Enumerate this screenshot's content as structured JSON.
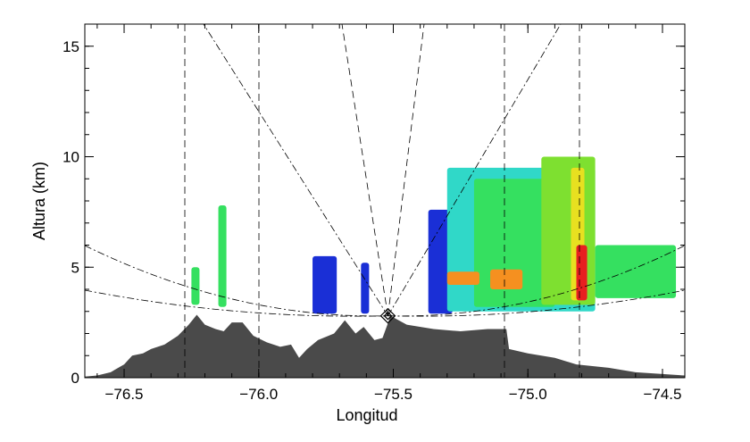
{
  "chart_data": {
    "type": "area",
    "xlabel": "Longitud",
    "ylabel": "Altura (km)",
    "xlim": [
      -76.646,
      -74.417
    ],
    "ylim": [
      0,
      16
    ],
    "xticks": [
      {
        "value": -76.5,
        "label": "−76.5"
      },
      {
        "value": -76.0,
        "label": "−76.0"
      },
      {
        "value": -75.5,
        "label": "−75.5"
      },
      {
        "value": -75.0,
        "label": "−75.0"
      },
      {
        "value": -74.5,
        "label": "−74.5"
      }
    ],
    "yticks": [
      {
        "value": 0,
        "label": "0"
      },
      {
        "value": 5,
        "label": "5"
      },
      {
        "value": 10,
        "label": "10"
      },
      {
        "value": 15,
        "label": "15"
      }
    ],
    "grid": false,
    "terrain_color": "#4a4a4a",
    "terrain": [
      [
        -76.646,
        0.05
      ],
      [
        -76.6,
        0.1
      ],
      [
        -76.55,
        0.25
      ],
      [
        -76.5,
        0.6
      ],
      [
        -76.47,
        1.0
      ],
      [
        -76.43,
        1.1
      ],
      [
        -76.4,
        1.3
      ],
      [
        -76.35,
        1.5
      ],
      [
        -76.3,
        1.9
      ],
      [
        -76.26,
        2.4
      ],
      [
        -76.23,
        2.85
      ],
      [
        -76.2,
        2.4
      ],
      [
        -76.16,
        2.2
      ],
      [
        -76.13,
        2.1
      ],
      [
        -76.1,
        2.5
      ],
      [
        -76.06,
        2.5
      ],
      [
        -76.02,
        1.9
      ],
      [
        -75.97,
        1.6
      ],
      [
        -75.92,
        1.4
      ],
      [
        -75.88,
        1.5
      ],
      [
        -75.85,
        0.9
      ],
      [
        -75.82,
        1.3
      ],
      [
        -75.78,
        1.7
      ],
      [
        -75.72,
        2.0
      ],
      [
        -75.68,
        2.6
      ],
      [
        -75.64,
        2.0
      ],
      [
        -75.61,
        2.3
      ],
      [
        -75.57,
        1.7
      ],
      [
        -75.54,
        1.8
      ],
      [
        -75.51,
        2.8
      ],
      [
        -75.45,
        2.4
      ],
      [
        -75.35,
        2.2
      ],
      [
        -75.25,
        2.1
      ],
      [
        -75.15,
        2.2
      ],
      [
        -75.08,
        2.2
      ],
      [
        -75.07,
        1.3
      ],
      [
        -75.0,
        1.1
      ],
      [
        -74.9,
        0.9
      ],
      [
        -74.82,
        0.6
      ],
      [
        -74.7,
        0.45
      ],
      [
        -74.6,
        0.25
      ],
      [
        -74.417,
        0.1
      ]
    ],
    "radar_site": {
      "lon": -75.52,
      "alt": 2.8
    },
    "echo_colors": [
      "#1a2fd6",
      "#2a8fd8",
      "#30d8c8",
      "#35e060",
      "#7ee030",
      "#e8e020",
      "#f59020",
      "#e82020"
    ],
    "echoes": [
      {
        "lon": [
          -76.25,
          -76.22
        ],
        "alt": [
          3.3,
          5.0
        ],
        "level": 3
      },
      {
        "lon": [
          -76.15,
          -76.12
        ],
        "alt": [
          3.2,
          7.8
        ],
        "level": 3
      },
      {
        "lon": [
          -75.8,
          -75.71
        ],
        "alt": [
          2.9,
          5.5
        ],
        "level": 0
      },
      {
        "lon": [
          -75.62,
          -75.59
        ],
        "alt": [
          2.9,
          5.2
        ],
        "level": 0
      },
      {
        "lon": [
          -75.37,
          -75.28
        ],
        "alt": [
          2.9,
          7.6
        ],
        "level": 0
      },
      {
        "lon": [
          -75.3,
          -74.75
        ],
        "alt": [
          3.0,
          9.5
        ],
        "level": 2
      },
      {
        "lon": [
          -75.2,
          -74.9
        ],
        "alt": [
          3.2,
          9.0
        ],
        "level": 3
      },
      {
        "lon": [
          -74.95,
          -74.75
        ],
        "alt": [
          3.3,
          10.0
        ],
        "level": 4
      },
      {
        "lon": [
          -75.3,
          -75.18
        ],
        "alt": [
          4.2,
          4.8
        ],
        "level": 6
      },
      {
        "lon": [
          -75.14,
          -75.02
        ],
        "alt": [
          4.0,
          4.9
        ],
        "level": 6
      },
      {
        "lon": [
          -74.84,
          -74.79
        ],
        "alt": [
          3.5,
          9.5
        ],
        "level": 5
      },
      {
        "lon": [
          -74.82,
          -74.78
        ],
        "alt": [
          3.5,
          6.0
        ],
        "level": 7
      },
      {
        "lon": [
          -74.75,
          -74.45
        ],
        "alt": [
          3.6,
          6.0
        ],
        "level": 3
      }
    ]
  }
}
